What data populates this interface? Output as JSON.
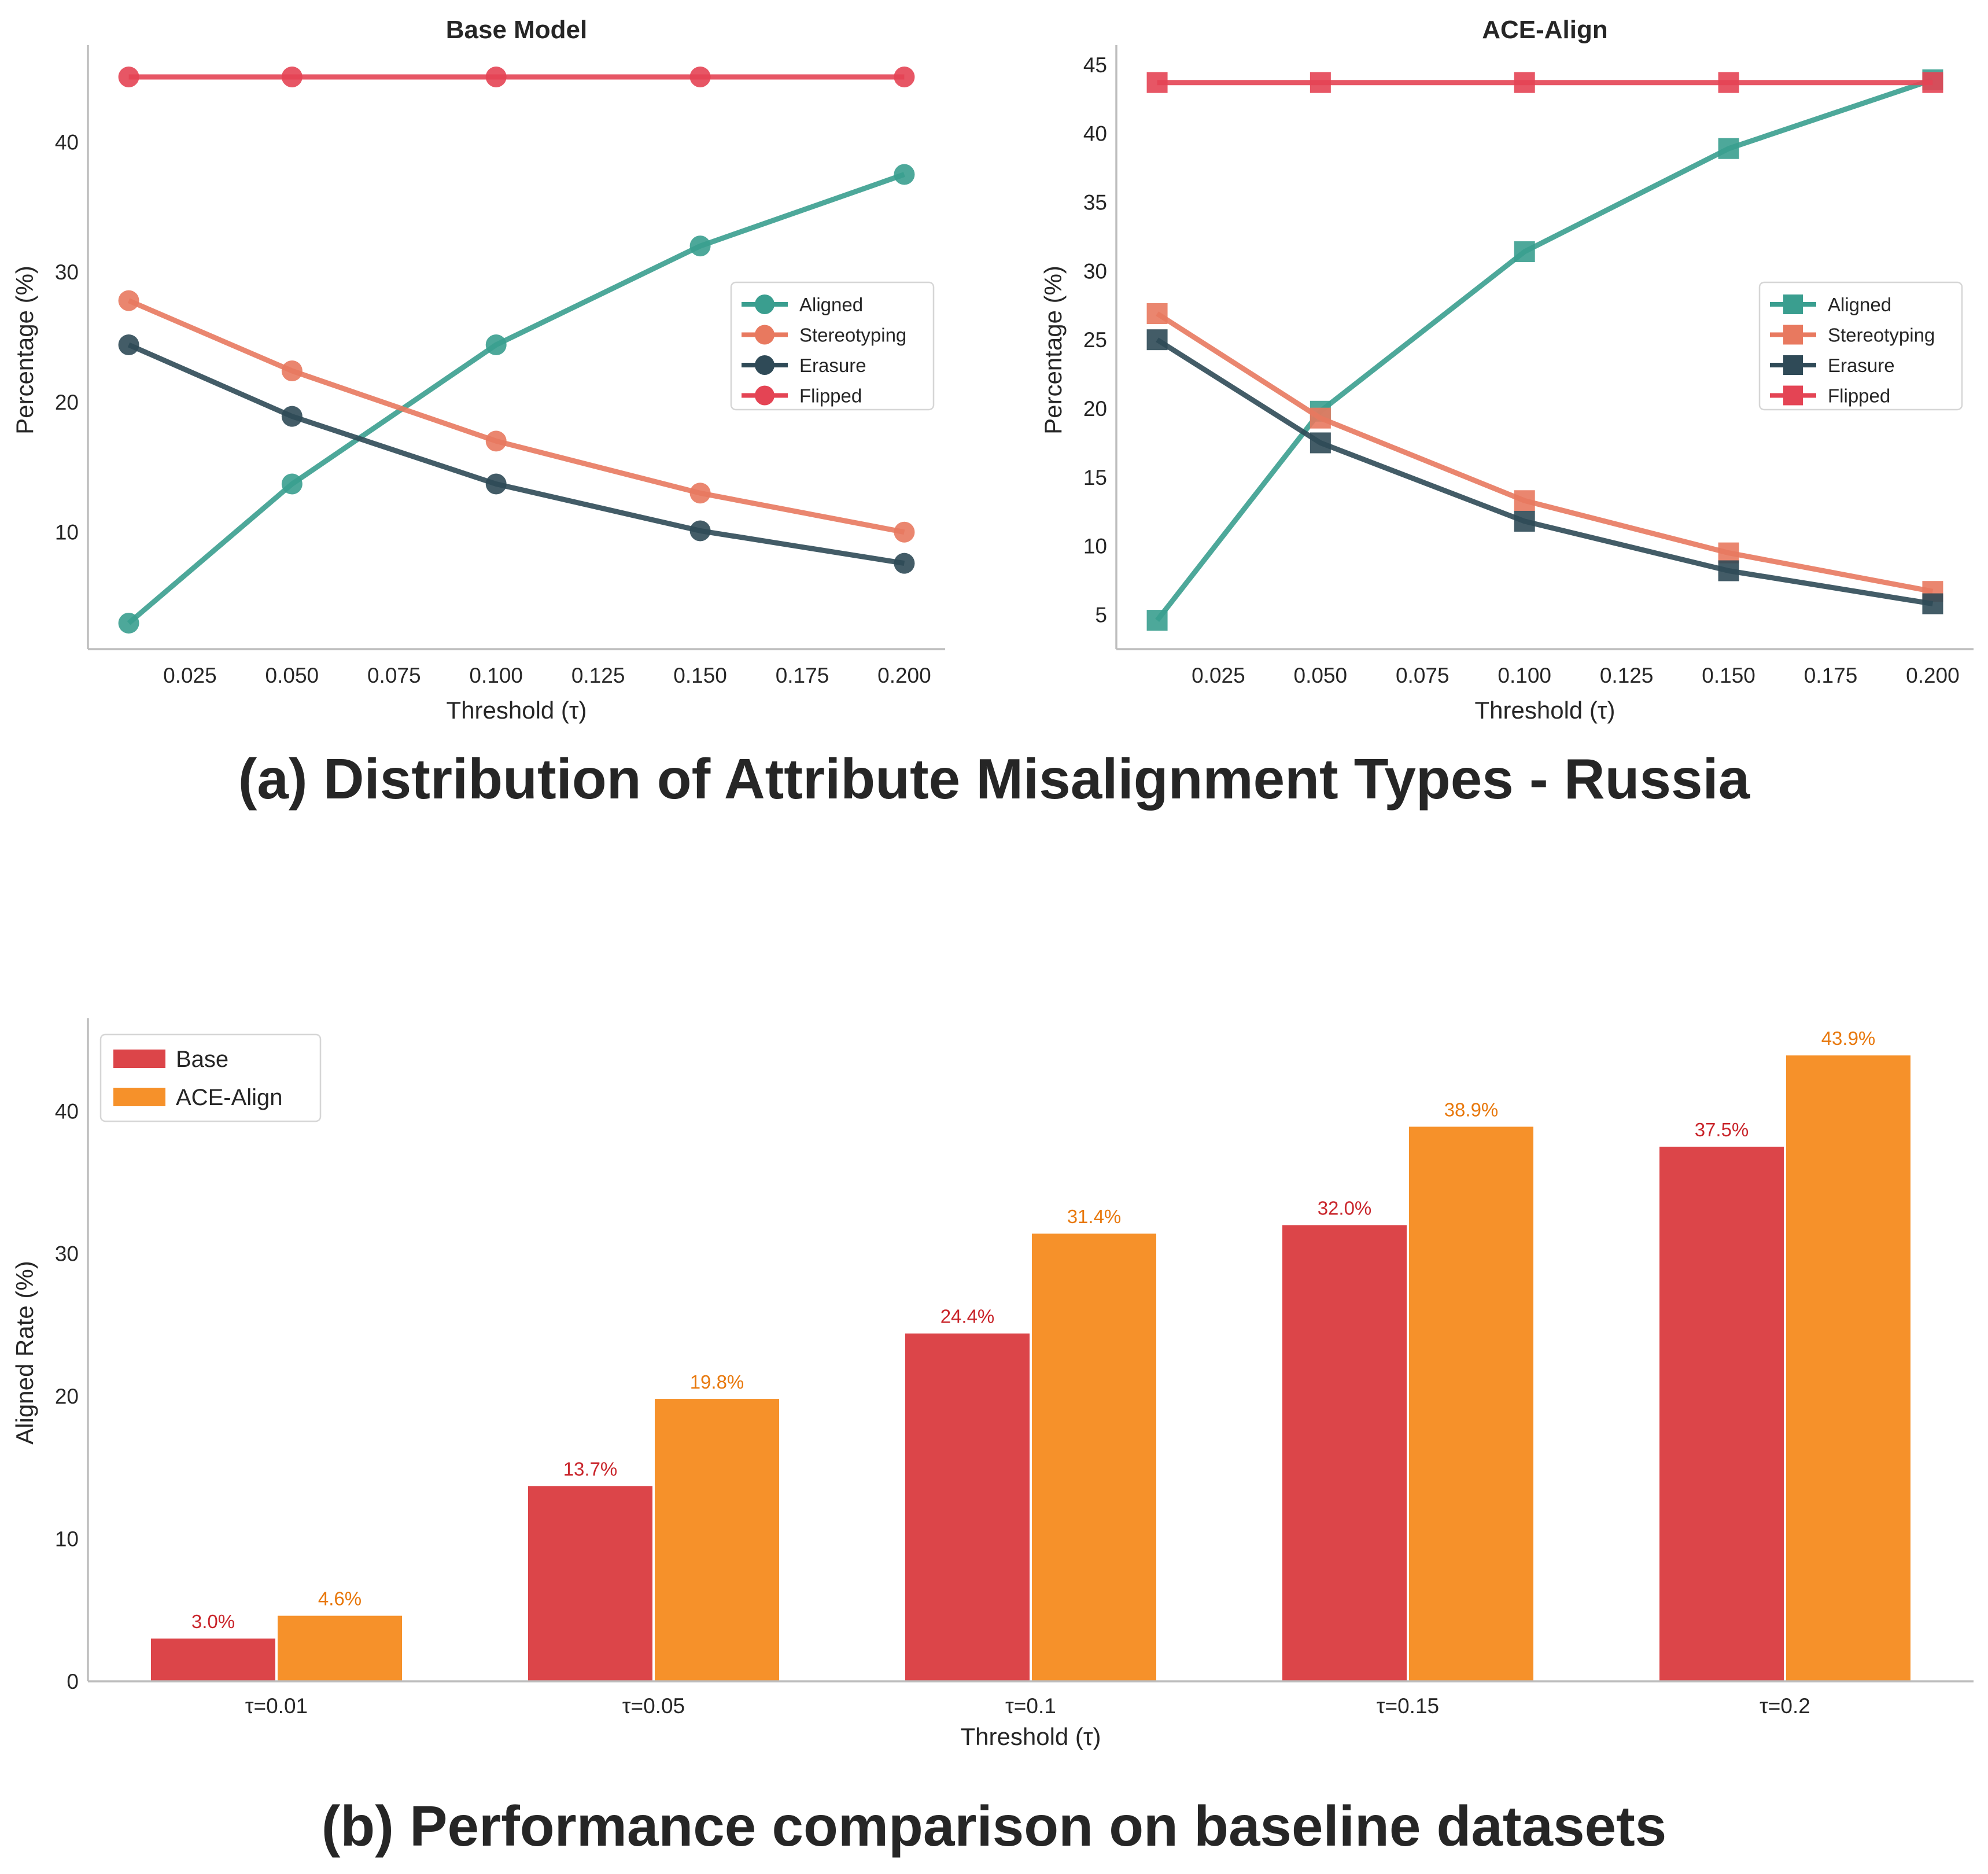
{
  "captions": {
    "a": "(a) Distribution of Attribute Misalignment Types - Russia",
    "b": "(b) Performance comparison on baseline datasets"
  },
  "chart_data": [
    {
      "type": "line",
      "title": "Base Model",
      "xlabel": "Threshold (τ)",
      "ylabel": "Percentage (%)",
      "xlim": [
        0.0,
        0.21
      ],
      "ylim": [
        1.0,
        47.0
      ],
      "xticks": [
        0.025,
        0.05,
        0.075,
        0.1,
        0.125,
        0.15,
        0.175,
        0.2
      ],
      "xtick_labels": [
        "0.025",
        "0.050",
        "0.075",
        "0.100",
        "0.125",
        "0.150",
        "0.175",
        "0.200"
      ],
      "yticks": [
        10,
        20,
        30,
        40
      ],
      "yticks_labels": [
        "10",
        "20",
        "30",
        "40"
      ],
      "marker": "circle",
      "legend_position": "center-right",
      "grid": false,
      "x": [
        0.01,
        0.05,
        0.1,
        0.15,
        0.2
      ],
      "series": [
        {
          "name": "Aligned",
          "color": "#3a9e8f",
          "values": [
            3.0,
            13.7,
            24.4,
            32.0,
            37.5
          ]
        },
        {
          "name": "Stereotyping",
          "color": "#e8795f",
          "values": [
            27.8,
            22.4,
            17.0,
            13.0,
            10.0
          ]
        },
        {
          "name": "Erasure",
          "color": "#2f4a57",
          "values": [
            24.4,
            18.9,
            13.7,
            10.1,
            7.6
          ]
        },
        {
          "name": "Flipped",
          "color": "#e44454",
          "values": [
            45.0,
            45.0,
            45.0,
            45.0,
            45.0
          ]
        }
      ]
    },
    {
      "type": "line",
      "title": "ACE-Align",
      "xlabel": "Threshold (τ)",
      "ylabel": "Percentage (%)",
      "xlim": [
        0.0,
        0.21
      ],
      "ylim": [
        2.5,
        46.0
      ],
      "xticks": [
        0.025,
        0.05,
        0.075,
        0.1,
        0.125,
        0.15,
        0.175,
        0.2
      ],
      "xtick_labels": [
        "0.025",
        "0.050",
        "0.075",
        "0.100",
        "0.125",
        "0.150",
        "0.175",
        "0.200"
      ],
      "yticks": [
        5,
        10,
        15,
        20,
        25,
        30,
        35,
        40,
        45
      ],
      "yticks_labels": [
        "5",
        "10",
        "15",
        "20",
        "25",
        "30",
        "35",
        "40",
        "45"
      ],
      "marker": "square",
      "legend_position": "center-right",
      "grid": false,
      "x": [
        0.01,
        0.05,
        0.1,
        0.15,
        0.2
      ],
      "series": [
        {
          "name": "Aligned",
          "color": "#3a9e8f",
          "values": [
            4.6,
            19.8,
            31.4,
            38.9,
            43.9
          ]
        },
        {
          "name": "Stereotyping",
          "color": "#e8795f",
          "values": [
            26.9,
            19.3,
            13.3,
            9.5,
            6.7
          ]
        },
        {
          "name": "Erasure",
          "color": "#2f4a57",
          "values": [
            25.0,
            17.5,
            11.8,
            8.2,
            5.8
          ]
        },
        {
          "name": "Flipped",
          "color": "#e44454",
          "values": [
            43.7,
            43.7,
            43.7,
            43.7,
            43.7
          ]
        }
      ]
    },
    {
      "type": "bar",
      "title": "",
      "xlabel": "Threshold (τ)",
      "ylabel": "Aligned Rate (%)",
      "ylim": [
        0,
        46.1
      ],
      "yticks": [
        0,
        10,
        20,
        30,
        40
      ],
      "yticks_labels": [
        "0",
        "10",
        "20",
        "30",
        "40"
      ],
      "legend_position": "top-left",
      "grid": false,
      "categories": [
        "τ=0.01",
        "τ=0.05",
        "τ=0.1",
        "τ=0.15",
        "τ=0.2"
      ],
      "series": [
        {
          "name": "Base",
          "color": "#dc4549",
          "label_color": "#c9252b",
          "values": [
            3.0,
            13.7,
            24.4,
            32.0,
            37.5
          ],
          "labels": [
            "3.0%",
            "13.7%",
            "24.4%",
            "32.0%",
            "37.5%"
          ]
        },
        {
          "name": "ACE-Align",
          "color": "#f6912a",
          "label_color": "#e8780c",
          "values": [
            4.6,
            19.8,
            31.4,
            38.9,
            43.9
          ],
          "labels": [
            "4.6%",
            "19.8%",
            "31.4%",
            "38.9%",
            "43.9%"
          ]
        }
      ]
    }
  ]
}
